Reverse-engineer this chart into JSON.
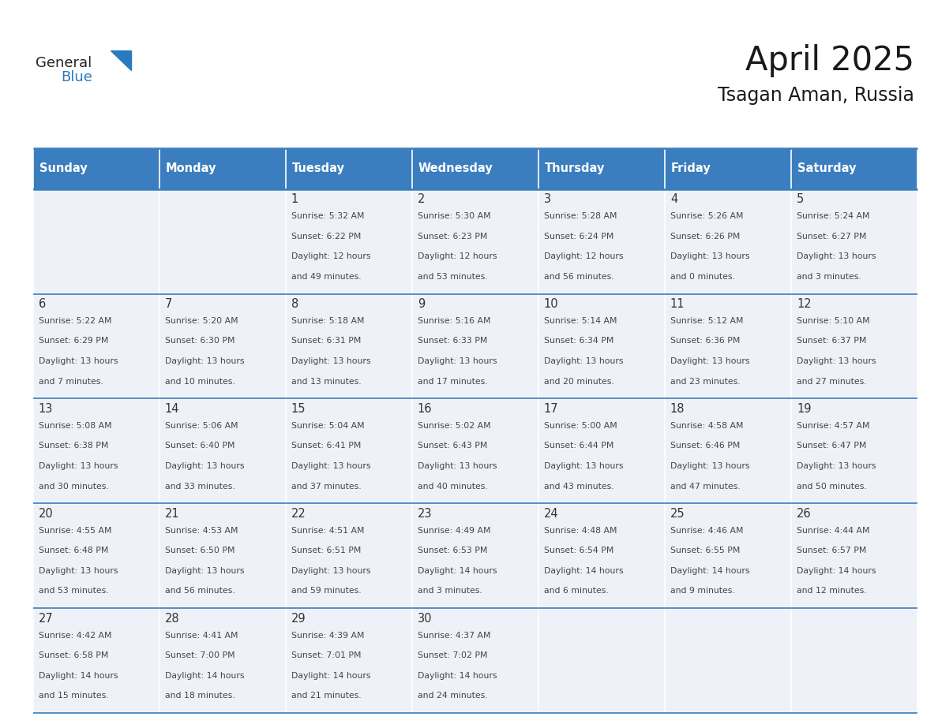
{
  "title": "April 2025",
  "subtitle": "Tsagan Aman, Russia",
  "days_of_week": [
    "Sunday",
    "Monday",
    "Tuesday",
    "Wednesday",
    "Thursday",
    "Friday",
    "Saturday"
  ],
  "header_bg": "#3a7ebf",
  "header_text_color": "#ffffff",
  "cell_bg_light": "#eef2f8",
  "border_color": "#3a7ebf",
  "text_color": "#444444",
  "day_number_color": "#333333",
  "logo_general_color": "#222222",
  "logo_blue_color": "#2a7abf",
  "calendar": [
    [
      {
        "day": null,
        "info": null
      },
      {
        "day": null,
        "info": null
      },
      {
        "day": 1,
        "info": "Sunrise: 5:32 AM\nSunset: 6:22 PM\nDaylight: 12 hours\nand 49 minutes."
      },
      {
        "day": 2,
        "info": "Sunrise: 5:30 AM\nSunset: 6:23 PM\nDaylight: 12 hours\nand 53 minutes."
      },
      {
        "day": 3,
        "info": "Sunrise: 5:28 AM\nSunset: 6:24 PM\nDaylight: 12 hours\nand 56 minutes."
      },
      {
        "day": 4,
        "info": "Sunrise: 5:26 AM\nSunset: 6:26 PM\nDaylight: 13 hours\nand 0 minutes."
      },
      {
        "day": 5,
        "info": "Sunrise: 5:24 AM\nSunset: 6:27 PM\nDaylight: 13 hours\nand 3 minutes."
      }
    ],
    [
      {
        "day": 6,
        "info": "Sunrise: 5:22 AM\nSunset: 6:29 PM\nDaylight: 13 hours\nand 7 minutes."
      },
      {
        "day": 7,
        "info": "Sunrise: 5:20 AM\nSunset: 6:30 PM\nDaylight: 13 hours\nand 10 minutes."
      },
      {
        "day": 8,
        "info": "Sunrise: 5:18 AM\nSunset: 6:31 PM\nDaylight: 13 hours\nand 13 minutes."
      },
      {
        "day": 9,
        "info": "Sunrise: 5:16 AM\nSunset: 6:33 PM\nDaylight: 13 hours\nand 17 minutes."
      },
      {
        "day": 10,
        "info": "Sunrise: 5:14 AM\nSunset: 6:34 PM\nDaylight: 13 hours\nand 20 minutes."
      },
      {
        "day": 11,
        "info": "Sunrise: 5:12 AM\nSunset: 6:36 PM\nDaylight: 13 hours\nand 23 minutes."
      },
      {
        "day": 12,
        "info": "Sunrise: 5:10 AM\nSunset: 6:37 PM\nDaylight: 13 hours\nand 27 minutes."
      }
    ],
    [
      {
        "day": 13,
        "info": "Sunrise: 5:08 AM\nSunset: 6:38 PM\nDaylight: 13 hours\nand 30 minutes."
      },
      {
        "day": 14,
        "info": "Sunrise: 5:06 AM\nSunset: 6:40 PM\nDaylight: 13 hours\nand 33 minutes."
      },
      {
        "day": 15,
        "info": "Sunrise: 5:04 AM\nSunset: 6:41 PM\nDaylight: 13 hours\nand 37 minutes."
      },
      {
        "day": 16,
        "info": "Sunrise: 5:02 AM\nSunset: 6:43 PM\nDaylight: 13 hours\nand 40 minutes."
      },
      {
        "day": 17,
        "info": "Sunrise: 5:00 AM\nSunset: 6:44 PM\nDaylight: 13 hours\nand 43 minutes."
      },
      {
        "day": 18,
        "info": "Sunrise: 4:58 AM\nSunset: 6:46 PM\nDaylight: 13 hours\nand 47 minutes."
      },
      {
        "day": 19,
        "info": "Sunrise: 4:57 AM\nSunset: 6:47 PM\nDaylight: 13 hours\nand 50 minutes."
      }
    ],
    [
      {
        "day": 20,
        "info": "Sunrise: 4:55 AM\nSunset: 6:48 PM\nDaylight: 13 hours\nand 53 minutes."
      },
      {
        "day": 21,
        "info": "Sunrise: 4:53 AM\nSunset: 6:50 PM\nDaylight: 13 hours\nand 56 minutes."
      },
      {
        "day": 22,
        "info": "Sunrise: 4:51 AM\nSunset: 6:51 PM\nDaylight: 13 hours\nand 59 minutes."
      },
      {
        "day": 23,
        "info": "Sunrise: 4:49 AM\nSunset: 6:53 PM\nDaylight: 14 hours\nand 3 minutes."
      },
      {
        "day": 24,
        "info": "Sunrise: 4:48 AM\nSunset: 6:54 PM\nDaylight: 14 hours\nand 6 minutes."
      },
      {
        "day": 25,
        "info": "Sunrise: 4:46 AM\nSunset: 6:55 PM\nDaylight: 14 hours\nand 9 minutes."
      },
      {
        "day": 26,
        "info": "Sunrise: 4:44 AM\nSunset: 6:57 PM\nDaylight: 14 hours\nand 12 minutes."
      }
    ],
    [
      {
        "day": 27,
        "info": "Sunrise: 4:42 AM\nSunset: 6:58 PM\nDaylight: 14 hours\nand 15 minutes."
      },
      {
        "day": 28,
        "info": "Sunrise: 4:41 AM\nSunset: 7:00 PM\nDaylight: 14 hours\nand 18 minutes."
      },
      {
        "day": 29,
        "info": "Sunrise: 4:39 AM\nSunset: 7:01 PM\nDaylight: 14 hours\nand 21 minutes."
      },
      {
        "day": 30,
        "info": "Sunrise: 4:37 AM\nSunset: 7:02 PM\nDaylight: 14 hours\nand 24 minutes."
      },
      {
        "day": null,
        "info": null
      },
      {
        "day": null,
        "info": null
      },
      {
        "day": null,
        "info": null
      }
    ]
  ]
}
